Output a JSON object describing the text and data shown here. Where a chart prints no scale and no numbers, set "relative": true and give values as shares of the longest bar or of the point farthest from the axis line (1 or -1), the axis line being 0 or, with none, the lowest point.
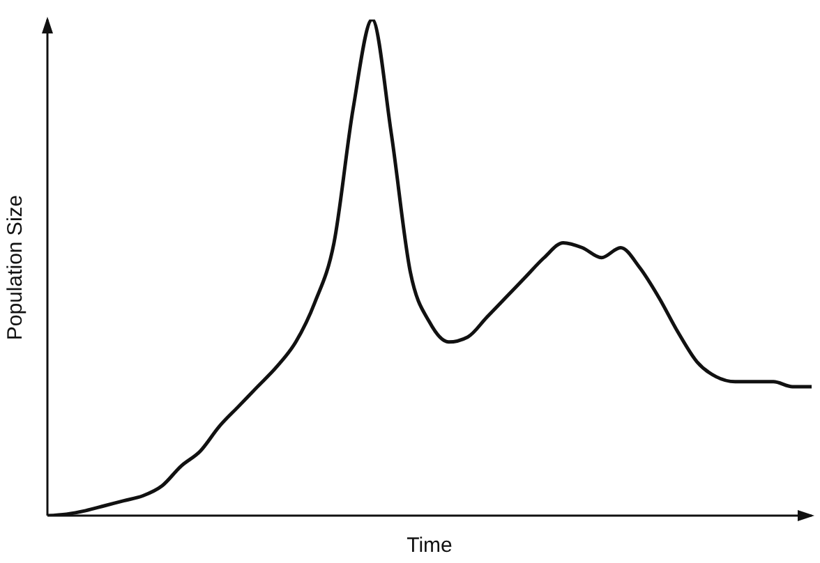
{
  "chart_data": {
    "type": "line",
    "xlabel": "Time",
    "ylabel": "Population Size",
    "relative": true,
    "marker": "none",
    "line_style": "solid",
    "categories": [
      null,
      null,
      null,
      null,
      null,
      null,
      null,
      null,
      null,
      null,
      null,
      null,
      null,
      null,
      null,
      null,
      null,
      null,
      null,
      null,
      null,
      null,
      null,
      null,
      null,
      null,
      null,
      null,
      null,
      null,
      null,
      null,
      null,
      null,
      null,
      null,
      null,
      null,
      null,
      null,
      null
    ],
    "series": [
      {
        "color": "#111111",
        "values": [
          0,
          0.003,
          0.01,
          0.02,
          0.03,
          0.04,
          0.06,
          0.1,
          0.13,
          0.18,
          0.22,
          0.26,
          0.3,
          0.35,
          0.43,
          0.55,
          0.82,
          1,
          0.77,
          0.49,
          0.39,
          0.35,
          0.36,
          0.4,
          0.44,
          0.48,
          0.52,
          0.55,
          0.54,
          0.52,
          0.54,
          0.5,
          0.44,
          0.37,
          0.31,
          0.28,
          0.27,
          0.27,
          0.27,
          0.26,
          0.26
        ]
      }
    ]
  }
}
